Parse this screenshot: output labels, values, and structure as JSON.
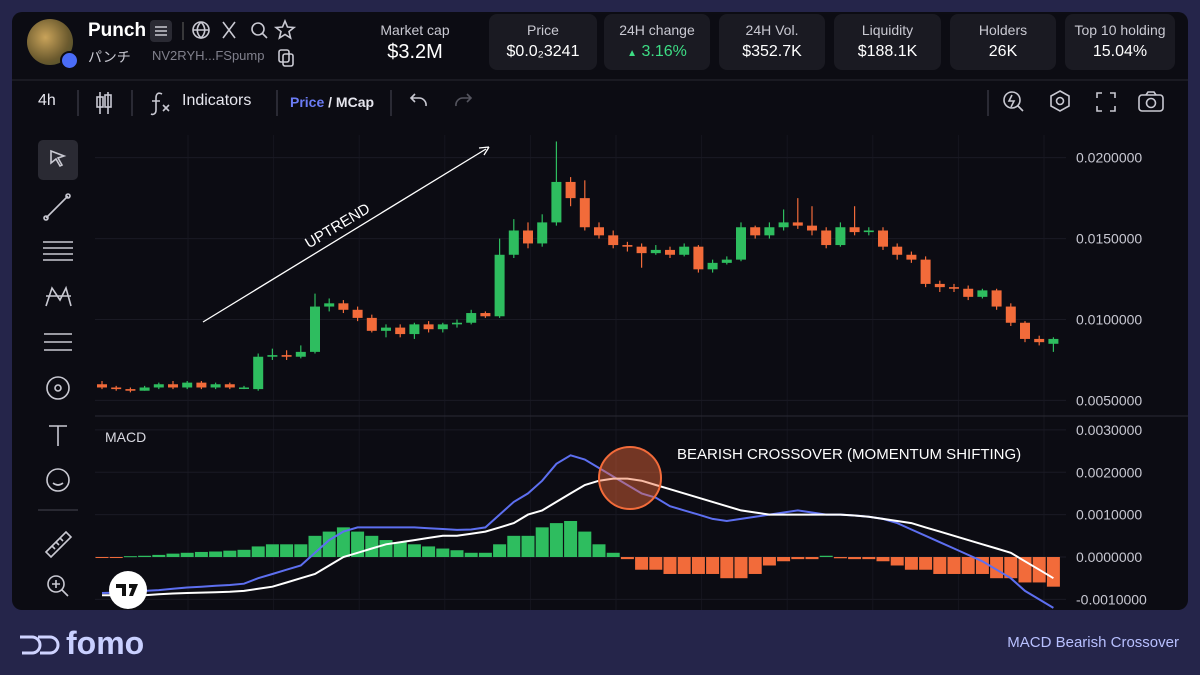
{
  "token": {
    "name": "Punch",
    "subtitle": "パンチ",
    "address": "NV2RYH...FSpump"
  },
  "stats": [
    {
      "label": "Market cap",
      "value": "$3.2M"
    },
    {
      "label": "Price",
      "value": "$0.0₂3241"
    },
    {
      "label": "24H change",
      "value": "3.16%",
      "color": "#3ddc84"
    },
    {
      "label": "24H Vol.",
      "value": "$352.7K"
    },
    {
      "label": "Liquidity",
      "value": "$188.1K"
    },
    {
      "label": "Holders",
      "value": "26K"
    },
    {
      "label": "Top 10 holding",
      "value": "15.04%"
    }
  ],
  "toolbar": {
    "interval": "4h",
    "indicators": "Indicators",
    "price": "Price",
    "separator": "/",
    "mcap": "MCap"
  },
  "chart_data": [
    {
      "type": "candlestick",
      "annotation": "UPTREND",
      "up_color": "#2ebd5f",
      "down_color": "#f26b3a",
      "ylim": [
        0.0041,
        0.0214
      ],
      "yticks": [
        {
          "value": 0.02,
          "label": "0.0200000"
        },
        {
          "value": 0.015,
          "label": "0.0150000"
        },
        {
          "value": 0.01,
          "label": "0.0100000"
        },
        {
          "value": 0.005,
          "label": "0.0050000"
        }
      ],
      "grid": true,
      "open": [
        0.006,
        0.0058,
        0.0057,
        0.0056,
        0.0058,
        0.006,
        0.0058,
        0.0061,
        0.0058,
        0.006,
        0.0058,
        0.0057,
        0.0077,
        0.0078,
        0.0077,
        0.008,
        0.0108,
        0.011,
        0.0106,
        0.0101,
        0.0093,
        0.0095,
        0.0091,
        0.0097,
        0.0094,
        0.0097,
        0.0098,
        0.0104,
        0.0102,
        0.014,
        0.0155,
        0.0147,
        0.016,
        0.0185,
        0.0175,
        0.0157,
        0.0152,
        0.0146,
        0.0145,
        0.0141,
        0.0143,
        0.014,
        0.0145,
        0.0131,
        0.0135,
        0.0137,
        0.0157,
        0.0152,
        0.0157,
        0.016,
        0.0158,
        0.0155,
        0.0146,
        0.0157,
        0.0154,
        0.0155,
        0.0145,
        0.014,
        0.0137,
        0.0122,
        0.012,
        0.0119,
        0.0114,
        0.0118,
        0.0108,
        0.0098,
        0.0088,
        0.0085
      ],
      "high": [
        0.0062,
        0.0059,
        0.0058,
        0.0059,
        0.0061,
        0.0062,
        0.0062,
        0.0062,
        0.0061,
        0.0061,
        0.0059,
        0.0079,
        0.0082,
        0.0081,
        0.0084,
        0.0116,
        0.0113,
        0.0112,
        0.0108,
        0.0103,
        0.0097,
        0.0097,
        0.0098,
        0.0099,
        0.0098,
        0.01,
        0.0106,
        0.0105,
        0.015,
        0.0162,
        0.016,
        0.0165,
        0.021,
        0.0188,
        0.0186,
        0.016,
        0.0155,
        0.0148,
        0.0147,
        0.0146,
        0.0145,
        0.0147,
        0.0146,
        0.0137,
        0.0139,
        0.016,
        0.0158,
        0.016,
        0.0168,
        0.0175,
        0.017,
        0.0157,
        0.016,
        0.017,
        0.0157,
        0.0157,
        0.0147,
        0.0142,
        0.0139,
        0.0124,
        0.0122,
        0.0121,
        0.0119,
        0.0119,
        0.011,
        0.0099,
        0.009,
        0.0089
      ],
      "low": [
        0.0057,
        0.0056,
        0.0055,
        0.0056,
        0.0057,
        0.0057,
        0.0057,
        0.0057,
        0.0057,
        0.0057,
        0.0057,
        0.0056,
        0.0075,
        0.0075,
        0.0076,
        0.0079,
        0.0105,
        0.0104,
        0.0099,
        0.0092,
        0.0089,
        0.0089,
        0.0088,
        0.0092,
        0.0092,
        0.0095,
        0.0097,
        0.0101,
        0.0101,
        0.0138,
        0.0144,
        0.0145,
        0.0158,
        0.017,
        0.0155,
        0.015,
        0.0144,
        0.0142,
        0.0132,
        0.014,
        0.0138,
        0.0139,
        0.0129,
        0.0129,
        0.0134,
        0.0136,
        0.015,
        0.015,
        0.0155,
        0.0156,
        0.0152,
        0.0144,
        0.0145,
        0.0152,
        0.0152,
        0.0143,
        0.0137,
        0.0135,
        0.012,
        0.0117,
        0.0117,
        0.0112,
        0.0113,
        0.0106,
        0.0096,
        0.0086,
        0.0084,
        0.008
      ],
      "close": [
        0.0058,
        0.0057,
        0.0056,
        0.0058,
        0.006,
        0.0058,
        0.0061,
        0.0058,
        0.006,
        0.0058,
        0.0058,
        0.0077,
        0.0078,
        0.0077,
        0.008,
        0.0108,
        0.011,
        0.0106,
        0.0101,
        0.0093,
        0.0095,
        0.0091,
        0.0097,
        0.0094,
        0.0097,
        0.0098,
        0.0104,
        0.0102,
        0.014,
        0.0155,
        0.0147,
        0.016,
        0.0185,
        0.0175,
        0.0157,
        0.0152,
        0.0146,
        0.0145,
        0.0141,
        0.0143,
        0.014,
        0.0145,
        0.0131,
        0.0135,
        0.0137,
        0.0157,
        0.0152,
        0.0157,
        0.016,
        0.0158,
        0.0155,
        0.0146,
        0.0157,
        0.0154,
        0.0155,
        0.0145,
        0.014,
        0.0137,
        0.0122,
        0.012,
        0.0119,
        0.0114,
        0.0118,
        0.0108,
        0.0098,
        0.0088,
        0.0086,
        0.0088
      ]
    },
    {
      "type": "macd",
      "title": "MACD",
      "annotation": "BEARISH CROSSOVER (MOMENTUM SHIFTING)",
      "macd_color": "#5d6ff0",
      "signal_color": "#ffffff",
      "up_color": "#2ebd5f",
      "down_color": "#f26b3a",
      "ylim": [
        -0.00125,
        0.00328
      ],
      "yticks": [
        {
          "value": 0.003,
          "label": "0.0030000"
        },
        {
          "value": 0.002,
          "label": "0.0020000"
        },
        {
          "value": 0.001,
          "label": "0.0010000"
        },
        {
          "value": 0,
          "label": "0.0000000"
        },
        {
          "value": -0.001,
          "label": "-0.0010000"
        }
      ],
      "grid": true,
      "histogram": [
        -2e-05,
        -2e-05,
        2e-05,
        3e-05,
        5e-05,
        8e-05,
        0.0001,
        0.00012,
        0.00013,
        0.00015,
        0.00017,
        0.00025,
        0.0003,
        0.0003,
        0.0003,
        0.0005,
        0.0006,
        0.0007,
        0.0006,
        0.0005,
        0.0004,
        0.00035,
        0.0003,
        0.00025,
        0.0002,
        0.00016,
        0.0001,
        0.0001,
        0.0003,
        0.0005,
        0.0005,
        0.0007,
        0.0008,
        0.00085,
        0.0006,
        0.0003,
        0.0001,
        -5e-05,
        -0.0003,
        -0.0003,
        -0.0004,
        -0.0004,
        -0.0004,
        -0.0004,
        -0.0005,
        -0.0005,
        -0.0004,
        -0.0002,
        -0.0001,
        -5e-05,
        -5e-05,
        3e-05,
        -3e-05,
        -5e-05,
        -5e-05,
        -0.0001,
        -0.0002,
        -0.0003,
        -0.0003,
        -0.0004,
        -0.0004,
        -0.0004,
        -0.0004,
        -0.0005,
        -0.0005,
        -0.0006,
        -0.0006,
        -0.0007
      ],
      "macd": [
        -0.00085,
        -0.00084,
        -0.00083,
        -0.0008,
        -0.00078,
        -0.00075,
        -0.00072,
        -0.0007,
        -0.00068,
        -0.00066,
        -0.00063,
        -0.0005,
        -0.0004,
        -0.0003,
        -0.0002,
        0.0001,
        0.0004,
        0.0006,
        0.0007,
        0.0007,
        0.0007,
        0.0007,
        0.0007,
        0.00068,
        0.00066,
        0.00064,
        0.00065,
        0.0007,
        0.001,
        0.0013,
        0.0015,
        0.0018,
        0.0022,
        0.0024,
        0.0023,
        0.0021,
        0.0019,
        0.0017,
        0.0015,
        0.0014,
        0.0012,
        0.0011,
        0.001,
        0.0009,
        0.00085,
        0.0009,
        0.00095,
        0.001,
        0.00105,
        0.0011,
        0.00105,
        0.001,
        0.001,
        0.00098,
        0.00095,
        0.0009,
        0.0008,
        0.00065,
        0.0005,
        0.00035,
        0.0002,
        5e-05,
        -0.0001,
        -0.0003,
        -0.0005,
        -0.0008,
        -0.001,
        -0.0012
      ],
      "signal": [
        -0.0009,
        -0.0009,
        -0.0009,
        -0.0009,
        -0.00088,
        -0.00086,
        -0.00085,
        -0.00084,
        -0.00083,
        -0.00082,
        -0.0008,
        -0.00075,
        -0.0007,
        -0.0006,
        -0.0005,
        -0.0004,
        -0.0002,
        0,
        0.0001,
        0.0002,
        0.0003,
        0.00035,
        0.0004,
        0.00045,
        0.0005,
        0.0005,
        0.00055,
        0.0006,
        0.0007,
        0.0008,
        0.001,
        0.0011,
        0.0013,
        0.0015,
        0.0017,
        0.0018,
        0.00185,
        0.00185,
        0.0018,
        0.0017,
        0.0016,
        0.0015,
        0.0014,
        0.0013,
        0.0012,
        0.0011,
        0.00105,
        0.001,
        0.001,
        0.001,
        0.001,
        0.001,
        0.001,
        0.00098,
        0.00095,
        0.0009,
        0.00085,
        0.0008,
        0.0007,
        0.0006,
        0.0005,
        0.0004,
        0.0003,
        0.0002,
        0.0001,
        -0.0001,
        -0.0003,
        -0.0005
      ]
    }
  ],
  "footer": {
    "brand": "fomo",
    "caption": "MACD Bearish Crossover"
  }
}
